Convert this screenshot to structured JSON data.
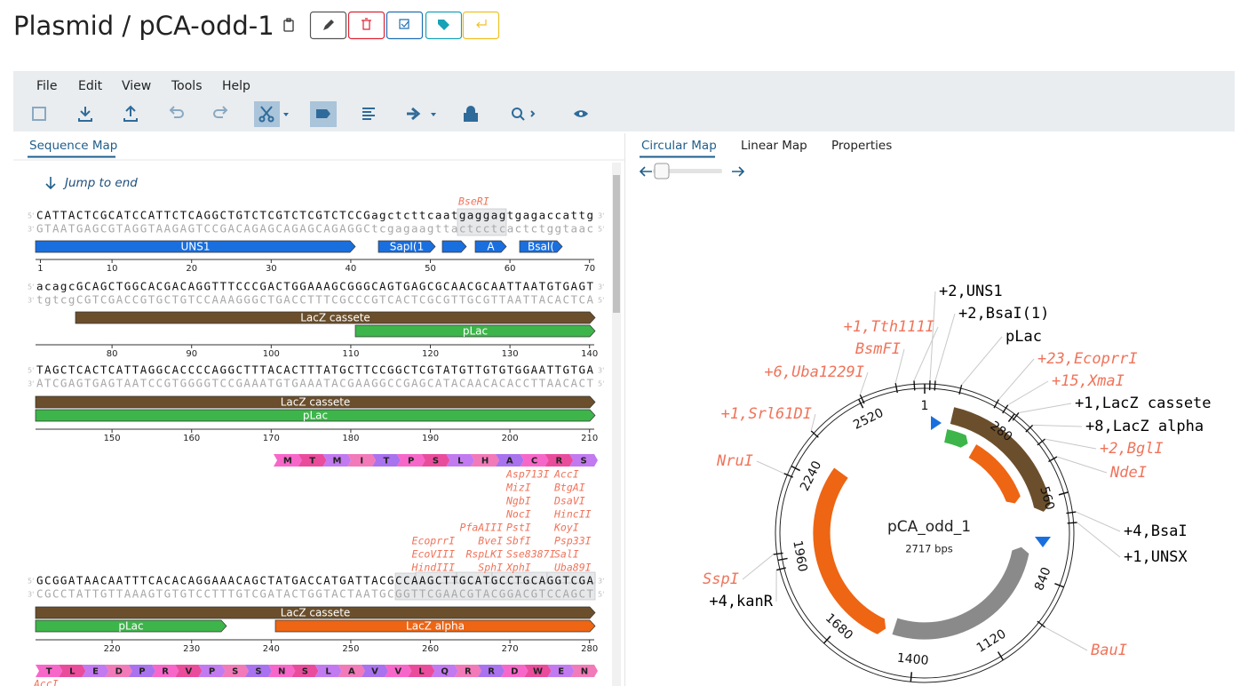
{
  "header": {
    "title": "Plasmid / pCA-odd-1"
  },
  "menu": [
    "File",
    "Edit",
    "View",
    "Tools",
    "Help"
  ],
  "sequence_map": {
    "tab": "Sequence Map",
    "jump": "Jump to end",
    "strand_labels": [
      "5'",
      "3'"
    ],
    "enzyme_color": "#f0735a",
    "rows": [
      {
        "top": "CATTACTCGCATCCATTCTCAGGCTGTCTCGTCTCGTCTCCGagctcttcaatgaggagtgagaccattg",
        "bottom": "GTAATGAGCGTAGGTAAGAGTCCGACAGAGCAGAGCAGAGGCtcgagaagttactcctcactctggtaac",
        "ticks": [
          1,
          10,
          20,
          30,
          40,
          50,
          60,
          70
        ],
        "enzymes": [
          [
            "BseRI"
          ]
        ],
        "features": [
          {
            "label": "UNS1",
            "color": "#1a6fdf"
          },
          {
            "label": "SapI(1",
            "color": "#1a6fdf"
          },
          {
            "label": "A",
            "color": "#1a6fdf"
          },
          {
            "label": "BsaI(",
            "color": "#1a6fdf"
          }
        ]
      },
      {
        "top": "acagcGCAGCTGGCACGACAGGTTTCCCGACTGGAAAGCGGGCAGTGAGCGCAACGCAATTAATGTGAGT",
        "bottom": "tgtcgCGTCGACCGTGCTGTCCAAAGGGCTGACCTTTCGCCCGTCACTCGCGTTGCGTTAATTACACTCA",
        "ticks": [
          80,
          90,
          100,
          110,
          120,
          130,
          140
        ],
        "features": [
          {
            "label": "LacZ cassete",
            "color": "#6b4f2c"
          },
          {
            "label": "pLac",
            "color": "#3db54a"
          }
        ]
      },
      {
        "top": "TAGCTCACTCATTAGGCACCCCAGGCTTTACACTTTATGCTTCCGGCTCGTATGTTGTGTGGAATTGTGA",
        "bottom": "ATCGAGTGAGTAATCCGTGGGGTCCGAAATGTGAAATACGAAGGCCGAGCATACAACACACCTTAACACT",
        "ticks": [
          150,
          160,
          170,
          180,
          190,
          200,
          210
        ],
        "features": [
          {
            "label": "LacZ cassete",
            "color": "#6b4f2c"
          },
          {
            "label": "pLac",
            "color": "#3db54a"
          }
        ]
      },
      {
        "translation": [
          "M",
          "T",
          "M",
          "I",
          "T",
          "P",
          "S",
          "L",
          "H",
          "A",
          "C",
          "R",
          "S"
        ],
        "enzymes": [
          [
            "EcoprrI",
            "EcoVIII",
            "HindIII"
          ],
          [
            "PfaAIII",
            "BveI",
            "RspLKI",
            "SphI"
          ],
          [
            "Asp713I",
            "MizI",
            "NgbI",
            "NocI",
            "PstI",
            "SbfI",
            "Sse8387I",
            "XphI"
          ],
          [
            "AccI",
            "BtgAI",
            "DsaVI",
            "HincII",
            "KoyI",
            "Psp33I",
            "SalI",
            "Uba89I"
          ]
        ],
        "top": "GCGGATAACAATTTCACACAGGAAACAGCTATGACCATGATTACGCCAAGCTTGCATGCCTGCAGGTCGA",
        "bottom": "CGCCTATTGTTAAAGTGTGTCCTTTGTCGATACTGGTACTAATGCGGTTCGAACGTACGGACGTCCAGCT",
        "ticks": [
          220,
          230,
          240,
          250,
          260,
          270,
          280
        ],
        "features": [
          {
            "label": "LacZ cassete",
            "color": "#6b4f2c"
          },
          {
            "label": "pLac",
            "color": "#3db54a"
          },
          {
            "label": "LacZ alpha",
            "color": "#ee6513"
          }
        ]
      },
      {
        "translation": [
          "T",
          "L",
          "E",
          "D",
          "P",
          "R",
          "V",
          "P",
          "S",
          "S",
          "N",
          "S",
          "L",
          "A",
          "V",
          "V",
          "L",
          "Q",
          "R",
          "R",
          "D",
          "W",
          "E",
          "N"
        ],
        "enzymes": [
          [
            "AccI"
          ]
        ]
      }
    ]
  },
  "circular_map": {
    "tabs": [
      "Circular Map",
      "Linear Map",
      "Properties"
    ],
    "name": "pCA_odd_1",
    "size": "2717 bps",
    "ticks": [
      1,
      280,
      560,
      840,
      1120,
      1400,
      1680,
      1960,
      2240,
      2520
    ],
    "labels": [
      {
        "text": "+2,UNS1",
        "color": "#000000"
      },
      {
        "text": "+2,BsaI(1)",
        "color": "#000000"
      },
      {
        "text": "pLac",
        "color": "#000000"
      },
      {
        "text": "+1,Tth111I",
        "color": "#f0735a"
      },
      {
        "text": "BsmFI",
        "color": "#f0735a"
      },
      {
        "text": "+23,EcoprrI",
        "color": "#f0735a"
      },
      {
        "text": "+15,XmaI",
        "color": "#f0735a"
      },
      {
        "text": "+6,Uba1229I",
        "color": "#f0735a"
      },
      {
        "text": "+1,LacZ cassete",
        "color": "#000000"
      },
      {
        "text": "+8,LacZ alpha",
        "color": "#000000"
      },
      {
        "text": "+1,Srl61DI",
        "color": "#f0735a"
      },
      {
        "text": "+2,BglI",
        "color": "#f0735a"
      },
      {
        "text": "NdeI",
        "color": "#f0735a"
      },
      {
        "text": "NruI",
        "color": "#f0735a"
      },
      {
        "text": "+4,BsaI",
        "color": "#000000"
      },
      {
        "text": "+1,UNSX",
        "color": "#000000"
      },
      {
        "text": "SspI",
        "color": "#f0735a"
      },
      {
        "text": "+4,kanR",
        "color": "#000000"
      },
      {
        "text": "BauI",
        "color": "#f0735a"
      }
    ]
  }
}
